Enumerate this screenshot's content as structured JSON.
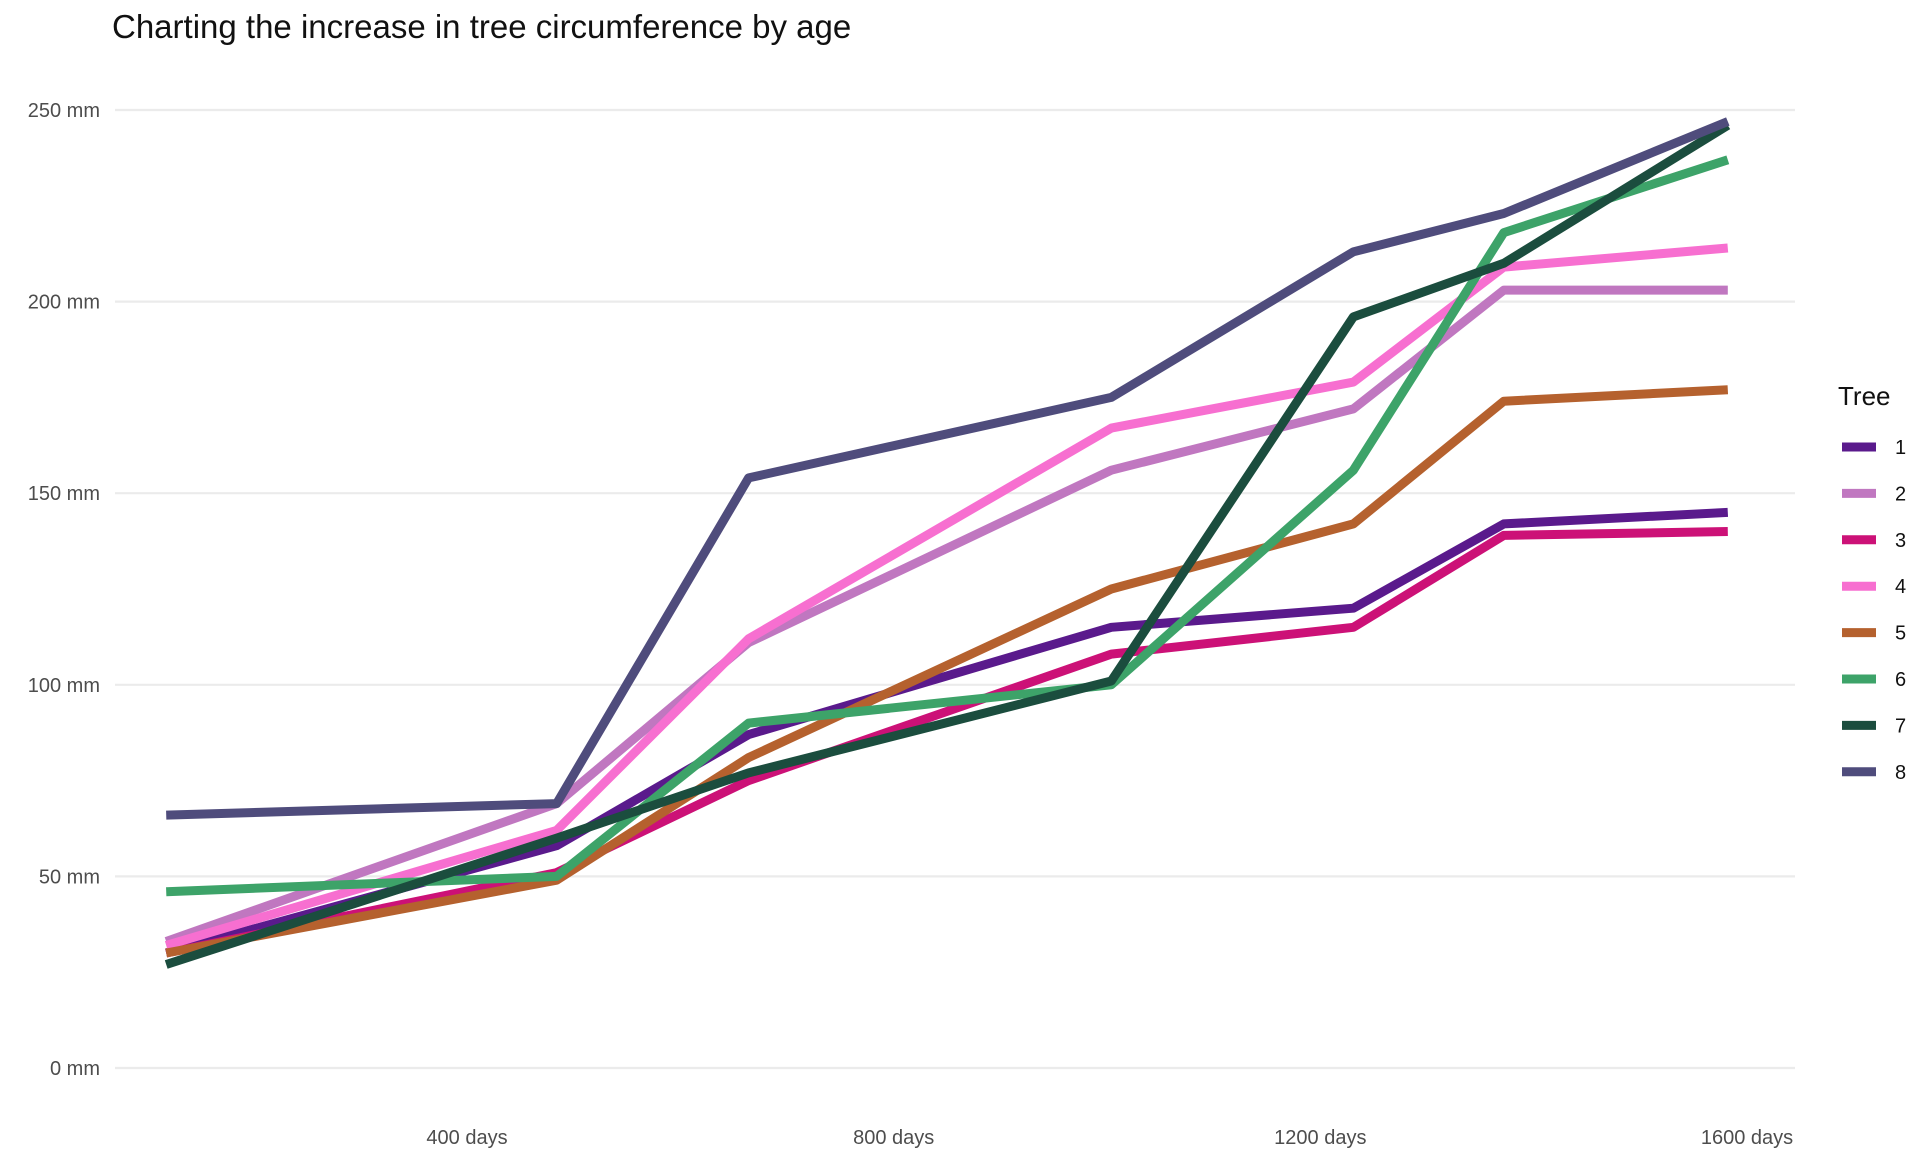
{
  "chart_data": {
    "type": "line",
    "title": "Charting the increase in tree circumference by age",
    "xlabel": "",
    "ylabel": "",
    "x": [
      118,
      484,
      664,
      1004,
      1231,
      1372,
      1582
    ],
    "x_unit_suffix": " days",
    "y_unit_suffix": " mm",
    "xlim": [
      70,
      1645
    ],
    "ylim": [
      0,
      250
    ],
    "x_ticks": [
      400,
      800,
      1200,
      1600
    ],
    "y_ticks": [
      0,
      50,
      100,
      150,
      200,
      250
    ],
    "grid": "horizontal",
    "legend": {
      "title": "Tree",
      "position": "right"
    },
    "series": [
      {
        "name": "1",
        "color": "#5a1a8c",
        "values": [
          30,
          58,
          87,
          115,
          120,
          142,
          145
        ]
      },
      {
        "name": "2",
        "color": "#c077c0",
        "values": [
          33,
          69,
          111,
          156,
          172,
          203,
          203
        ]
      },
      {
        "name": "3",
        "color": "#cc1177",
        "values": [
          30,
          51,
          75,
          108,
          115,
          139,
          140
        ]
      },
      {
        "name": "4",
        "color": "#f76fd0",
        "values": [
          32,
          62,
          112,
          167,
          179,
          209,
          214
        ]
      },
      {
        "name": "5",
        "color": "#b5612e",
        "values": [
          30,
          49,
          81,
          125,
          142,
          174,
          177
        ]
      },
      {
        "name": "6",
        "color": "#3da369",
        "values": [
          46,
          50,
          90,
          100,
          156,
          218,
          237
        ]
      },
      {
        "name": "7",
        "color": "#1b4d3e",
        "values": [
          27,
          60,
          77,
          101,
          196,
          210,
          246
        ]
      },
      {
        "name": "8",
        "color": "#4f4c7c",
        "values": [
          66,
          69,
          154,
          175,
          213,
          223,
          247
        ]
      }
    ]
  }
}
